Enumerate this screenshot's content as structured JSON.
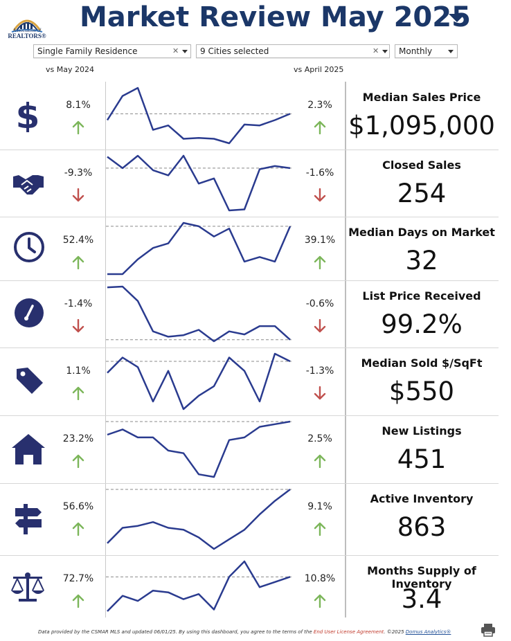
{
  "header": {
    "title": "Market Review",
    "period": "May 2025",
    "logo_text_top": "Association of",
    "logo_text_bottom": "REALTORS®"
  },
  "filters": {
    "property_type": "Single Family Residence",
    "cities": "9 Cities selected",
    "interval": "Monthly"
  },
  "comparison": {
    "year_label": "vs May 2024",
    "month_label": "vs April 2025"
  },
  "colors": {
    "brand_navy": "#1b3768",
    "icon_navy": "#28306e",
    "line": "#2a3b8f",
    "up": "#7cb65a",
    "down": "#c0504d"
  },
  "metrics": [
    {
      "icon": "dollar-icon",
      "title": "Median Sales Price",
      "value": "$1,095,000",
      "yoy": "8.1%",
      "yoy_dir": "up",
      "mom": "2.3%",
      "mom_dir": "up",
      "series": [
        26,
        53,
        62,
        15,
        20,
        5,
        6,
        5,
        0,
        21,
        20,
        26,
        33
      ]
    },
    {
      "icon": "handshake-icon",
      "title": "Closed Sales",
      "value": "254",
      "yoy": "-9.3%",
      "yoy_dir": "down",
      "mom": "-1.6%",
      "mom_dir": "down",
      "series": [
        53,
        42,
        54,
        40,
        35,
        54,
        27,
        32,
        1,
        2,
        41,
        44,
        42
      ]
    },
    {
      "icon": "clock-icon",
      "title": "Median Days on Market",
      "value": "32",
      "yoy": "52.4%",
      "yoy_dir": "up",
      "mom": "39.1%",
      "mom_dir": "up",
      "series": [
        10,
        10,
        23,
        33,
        37,
        55,
        52,
        43,
        50,
        21,
        25,
        21,
        52
      ]
    },
    {
      "icon": "gauge-icon",
      "title": "List Price Received",
      "value": "99.2%",
      "yoy": "-1.4%",
      "yoy_dir": "down",
      "mom": "-0.6%",
      "mom_dir": "down",
      "series": [
        78,
        79,
        60,
        20,
        13,
        15,
        22,
        7,
        20,
        16,
        27,
        27,
        9
      ]
    },
    {
      "icon": "price-tag-icon",
      "title": "Median Sold $/SqFt",
      "value": "$550",
      "yoy": "1.1%",
      "yoy_dir": "up",
      "mom": "-1.3%",
      "mom_dir": "down",
      "series": [
        52,
        60,
        55,
        37,
        53,
        33,
        40,
        45,
        60,
        53,
        37,
        62,
        58
      ]
    },
    {
      "icon": "house-icon",
      "title": "New Listings",
      "value": "451",
      "yoy": "23.2%",
      "yoy_dir": "up",
      "mom": "2.5%",
      "mom_dir": "up",
      "series": [
        38,
        40,
        37,
        37,
        32,
        31,
        23,
        22,
        36,
        37,
        41,
        42,
        43
      ]
    },
    {
      "icon": "signpost-icon",
      "title": "Active Inventory",
      "value": "863",
      "yoy": "56.6%",
      "yoy_dir": "up",
      "mom": "9.1%",
      "mom_dir": "up",
      "series": [
        10,
        18,
        19,
        21,
        18,
        17,
        13,
        7,
        12,
        17,
        25,
        32,
        38
      ]
    },
    {
      "icon": "balance-scale-icon",
      "title": "Months Supply of Inventory",
      "value": "3.4",
      "yoy": "72.7%",
      "yoy_dir": "up",
      "mom": "10.8%",
      "mom_dir": "up",
      "series": [
        10,
        19,
        16,
        22,
        21,
        17,
        20,
        11,
        30,
        39,
        24,
        27,
        30
      ]
    }
  ],
  "footer": {
    "text_before": "Data provided by the CSMAR MLS and updated 06/01/25.  By using this dashboard, you agree to the terms of the",
    "eula": "End User License Agreement",
    "copyright": ".  ©2025",
    "vendor": "Domus Analytics®"
  }
}
